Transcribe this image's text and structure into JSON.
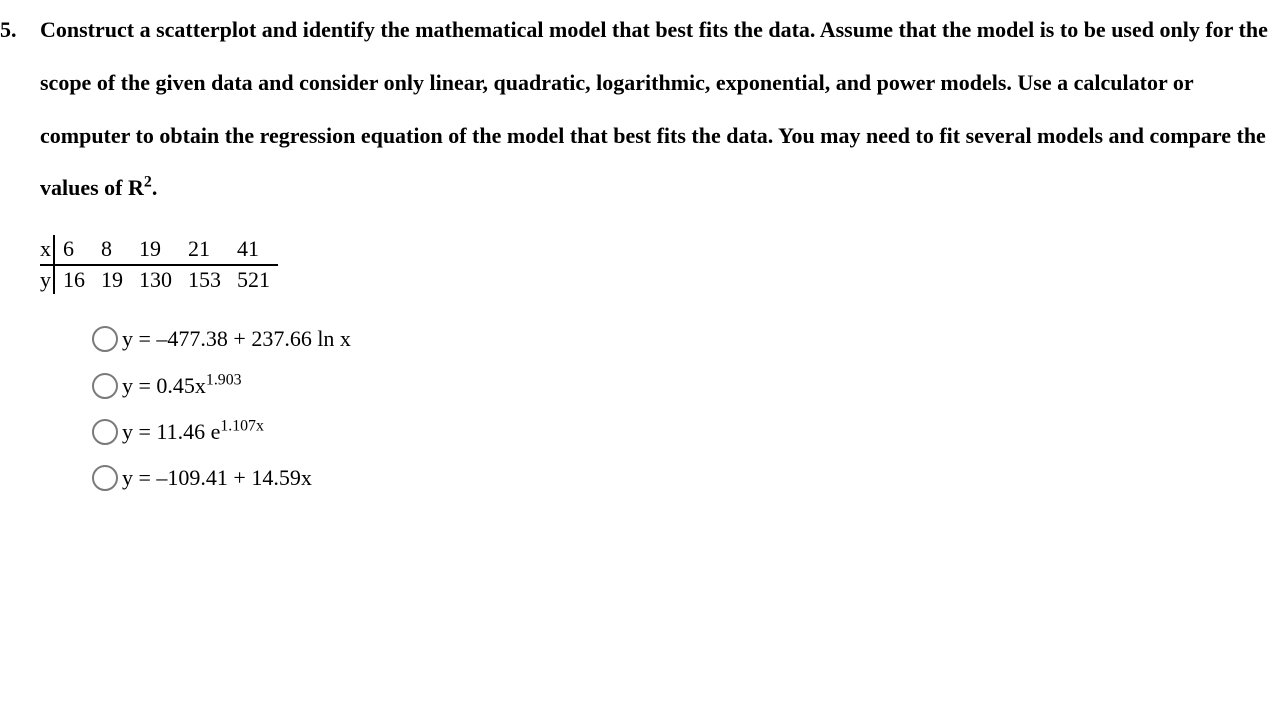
{
  "question": {
    "number": "5.",
    "prompt": "Construct a scatterplot and identify the mathematical model that best fits the data. Assume that the model is to be used only for the scope of the given data and consider only linear, quadratic, logarithmic, exponential, and power models. Use a calculator or computer to obtain the regression equation of the model that best fits the data. You may need to fit several models and compare the values of R",
    "prompt_sup": "2",
    "prompt_after": ".",
    "fontsize": 22,
    "fontweight": "bold",
    "color": "#000000"
  },
  "table": {
    "columns": [
      "x",
      "y"
    ],
    "rows": [
      [
        "6",
        "8",
        "19",
        "21",
        "41"
      ],
      [
        "16",
        "19",
        "130",
        "153",
        "521"
      ]
    ],
    "border_color": "#000000",
    "border_width": 2
  },
  "choices": {
    "radio_border_color": "#7a7a7a",
    "items": [
      {
        "pre": "y = –477.38 + 237.66 ln x",
        "sup": "",
        "post": ""
      },
      {
        "pre": "y = 0.45x",
        "sup": "1.903",
        "post": ""
      },
      {
        "pre": "y = 11.46 e",
        "sup": "1.107x",
        "post": ""
      },
      {
        "pre": "y = –109.41 + 14.59x",
        "sup": "",
        "post": ""
      }
    ]
  },
  "page": {
    "background_color": "#ffffff",
    "text_color": "#000000",
    "font_family": "Times New Roman"
  }
}
